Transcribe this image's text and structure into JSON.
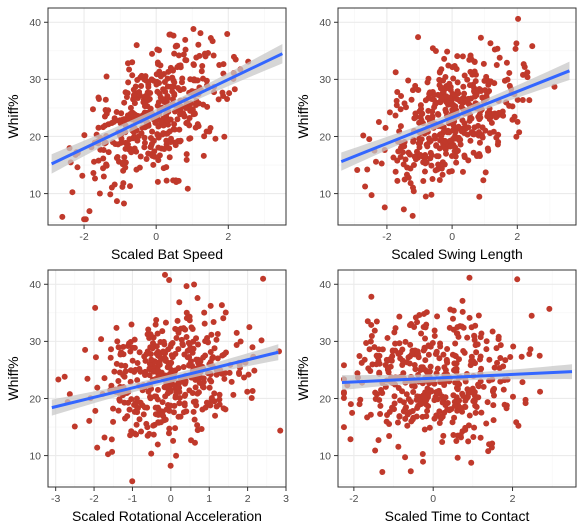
{
  "chart_data": [
    {
      "type": "scatter",
      "xlabel": "Scaled Bat Speed",
      "ylabel": "Whiff%",
      "xlim": [
        -3.0,
        3.6
      ],
      "ylim": [
        4.5,
        42.5
      ],
      "xticks": [
        -2,
        0,
        2
      ],
      "yticks": [
        10,
        20,
        30,
        40
      ],
      "trend": {
        "x": [
          -2.9,
          3.5
        ],
        "y": [
          15.2,
          34.5
        ],
        "se": 1.7
      },
      "n_points": 450,
      "point_sd_x": 1.0,
      "residual_sd": 5.0
    },
    {
      "type": "scatter",
      "xlabel": "Scaled Swing Length",
      "ylabel": "Whiff%",
      "xlim": [
        -3.5,
        3.8
      ],
      "ylim": [
        4.5,
        42.5
      ],
      "xticks": [
        -2,
        0,
        2
      ],
      "yticks": [
        10,
        20,
        30,
        40
      ],
      "trend": {
        "x": [
          -3.4,
          3.6
        ],
        "y": [
          15.6,
          31.5
        ],
        "se": 1.6
      },
      "n_points": 450,
      "point_sd_x": 1.0,
      "residual_sd": 5.2
    },
    {
      "type": "scatter",
      "xlabel": "Scaled Rotational Acceleration",
      "ylabel": "Whiff%",
      "xlim": [
        -3.2,
        3.0
      ],
      "ylim": [
        4.5,
        42.5
      ],
      "xticks": [
        -3,
        -2,
        -1,
        0,
        1,
        2,
        3
      ],
      "yticks": [
        10,
        20,
        30,
        40
      ],
      "trend": {
        "x": [
          -3.1,
          2.8
        ],
        "y": [
          18.4,
          28.1
        ],
        "se": 1.4
      },
      "n_points": 450,
      "point_sd_x": 1.0,
      "residual_sd": 5.8
    },
    {
      "type": "scatter",
      "xlabel": "Scaled Time to Contact",
      "ylabel": "Whiff%",
      "xlim": [
        -2.4,
        3.6
      ],
      "ylim": [
        4.5,
        42.5
      ],
      "xticks": [
        -2,
        0,
        2
      ],
      "yticks": [
        10,
        20,
        30,
        40
      ],
      "trend": {
        "x": [
          -2.3,
          3.5
        ],
        "y": [
          22.8,
          24.7
        ],
        "se": 1.3
      },
      "n_points": 450,
      "point_sd_x": 1.0,
      "residual_sd": 6.0
    }
  ],
  "colors": {
    "points": "#c0392b",
    "trend_line": "#3366ff",
    "ribbon": "#c8c8c8",
    "grid_major": "#ebebeb",
    "grid_minor": "#f5f5f5",
    "panel_border": "#333333"
  }
}
